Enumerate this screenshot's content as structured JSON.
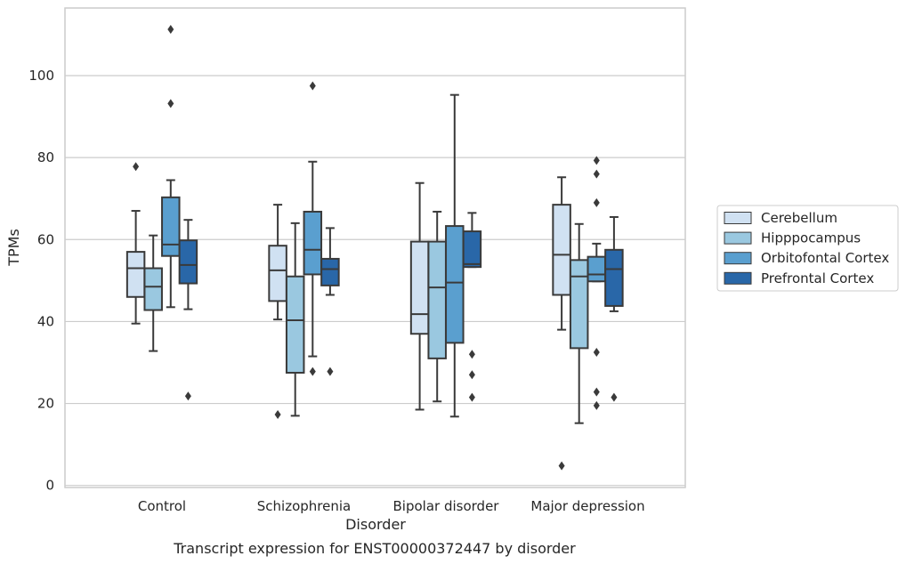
{
  "chart_data": {
    "type": "boxplot",
    "title": "Transcript expression for ENST00000372447 by disorder",
    "xlabel": "Disorder",
    "ylabel": "TPMs",
    "ylim": [
      -0.5,
      116.5
    ],
    "yticks": [
      0,
      20,
      40,
      60,
      80,
      100
    ],
    "grid": "horizontal",
    "legend": "right",
    "categories": [
      "Control",
      "Schizophrenia",
      "Bipolar disorder",
      "Major depression"
    ],
    "series": [
      {
        "name": "Cerebellum",
        "color": "#d0e1f2",
        "boxes": [
          {
            "whislo": 39.5,
            "q1": 46.0,
            "med": 53.0,
            "q3": 57.0,
            "whishi": 67.0,
            "fliers": [
              77.8
            ]
          },
          {
            "whislo": 40.5,
            "q1": 45.0,
            "med": 52.5,
            "q3": 58.5,
            "whishi": 68.5,
            "fliers": [
              17.3
            ]
          },
          {
            "whislo": 18.5,
            "q1": 37.0,
            "med": 41.8,
            "q3": 59.5,
            "whishi": 73.8,
            "fliers": []
          },
          {
            "whislo": 38.0,
            "q1": 46.5,
            "med": 56.3,
            "q3": 68.5,
            "whishi": 75.2,
            "fliers": [
              4.8
            ]
          }
        ]
      },
      {
        "name": "Hipppocampus",
        "color": "#9ac8e0",
        "boxes": [
          {
            "whislo": 32.8,
            "q1": 42.8,
            "med": 48.5,
            "q3": 53.0,
            "whishi": 61.0,
            "fliers": []
          },
          {
            "whislo": 17.0,
            "q1": 27.5,
            "med": 40.3,
            "q3": 51.0,
            "whishi": 64.0,
            "fliers": []
          },
          {
            "whislo": 20.5,
            "q1": 31.0,
            "med": 48.3,
            "q3": 59.5,
            "whishi": 66.8,
            "fliers": []
          },
          {
            "whislo": 15.2,
            "q1": 33.5,
            "med": 51.0,
            "q3": 55.0,
            "whishi": 63.8,
            "fliers": []
          }
        ]
      },
      {
        "name": "Orbitofontal Cortex",
        "color": "#5a9fcf",
        "boxes": [
          {
            "whislo": 43.5,
            "q1": 56.0,
            "med": 58.8,
            "q3": 70.3,
            "whishi": 74.5,
            "fliers": [
              93.2,
              111.3
            ]
          },
          {
            "whislo": 31.5,
            "q1": 51.5,
            "med": 57.5,
            "q3": 66.8,
            "whishi": 79.0,
            "fliers": [
              27.8,
              97.5
            ]
          },
          {
            "whislo": 16.8,
            "q1": 34.8,
            "med": 49.5,
            "q3": 63.3,
            "whishi": 95.3,
            "fliers": []
          },
          {
            "whislo": 49.8,
            "q1": 49.8,
            "med": 51.5,
            "q3": 55.8,
            "whishi": 59.0,
            "fliers": [
              19.5,
              22.8,
              32.5,
              69.0,
              76.0,
              79.3
            ]
          }
        ]
      },
      {
        "name": "Prefrontal Cortex",
        "color": "#2967a8",
        "boxes": [
          {
            "whislo": 43.0,
            "q1": 49.3,
            "med": 53.8,
            "q3": 59.8,
            "whishi": 64.8,
            "fliers": [
              21.8
            ]
          },
          {
            "whislo": 46.5,
            "q1": 48.8,
            "med": 52.8,
            "q3": 55.3,
            "whishi": 62.8,
            "fliers": [
              27.8
            ]
          },
          {
            "whislo": 53.3,
            "q1": 53.3,
            "med": 54.0,
            "q3": 62.0,
            "whishi": 66.5,
            "fliers": [
              21.5,
              27.0,
              32.0
            ]
          },
          {
            "whislo": 42.5,
            "q1": 43.8,
            "med": 52.8,
            "q3": 57.5,
            "whishi": 65.5,
            "fliers": [
              21.5
            ]
          }
        ]
      }
    ]
  }
}
